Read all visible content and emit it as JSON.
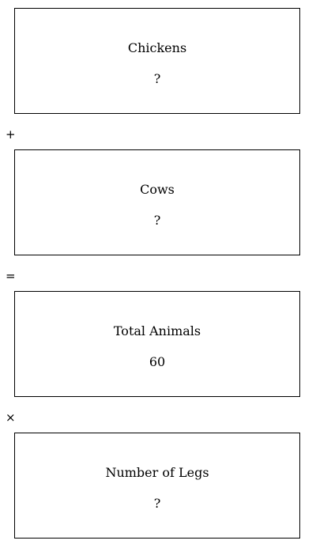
{
  "boxes": {
    "chickens": {
      "label": "Chickens",
      "value": "?"
    },
    "cows": {
      "label": "Cows",
      "value": "?"
    },
    "total": {
      "label": "Total Animals",
      "value": "60"
    },
    "legs": {
      "label": "Number of Legs",
      "value": "?"
    }
  },
  "operators": {
    "plus": "+",
    "equals": "=",
    "times": "×"
  },
  "colors": {
    "border": "#000000",
    "text": "#000000",
    "background": "#ffffff"
  }
}
